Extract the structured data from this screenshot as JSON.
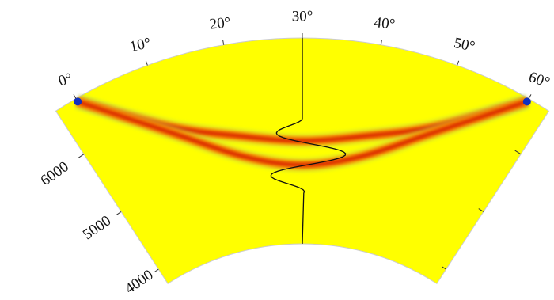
{
  "chart_data": {
    "type": "polar-sector",
    "thetalim": [
      -3,
      63
    ],
    "thetaticks": [
      {
        "value": 0,
        "label": "0°"
      },
      {
        "value": 10,
        "label": "10°"
      },
      {
        "value": 20,
        "label": "20°"
      },
      {
        "value": 30,
        "label": "30°"
      },
      {
        "value": 40,
        "label": "40°"
      },
      {
        "value": 50,
        "label": "50°"
      },
      {
        "value": 60,
        "label": "60°"
      }
    ],
    "ylim": [
      3750,
      6750
    ],
    "yticks": [
      4000,
      5000,
      6000
    ],
    "background": "#ffff00",
    "x": [
      0,
      10,
      20,
      30,
      40,
      50,
      60
    ],
    "series": [
      {
        "color": "#cc0000",
        "values": [
          6700,
          5800,
          5400,
          5250,
          5400,
          5800,
          6700
        ]
      },
      {
        "color": "#cc0000",
        "values": [
          6700,
          5700,
          5100,
          4900,
          5100,
          5700,
          6700
        ]
      }
    ]
  }
}
